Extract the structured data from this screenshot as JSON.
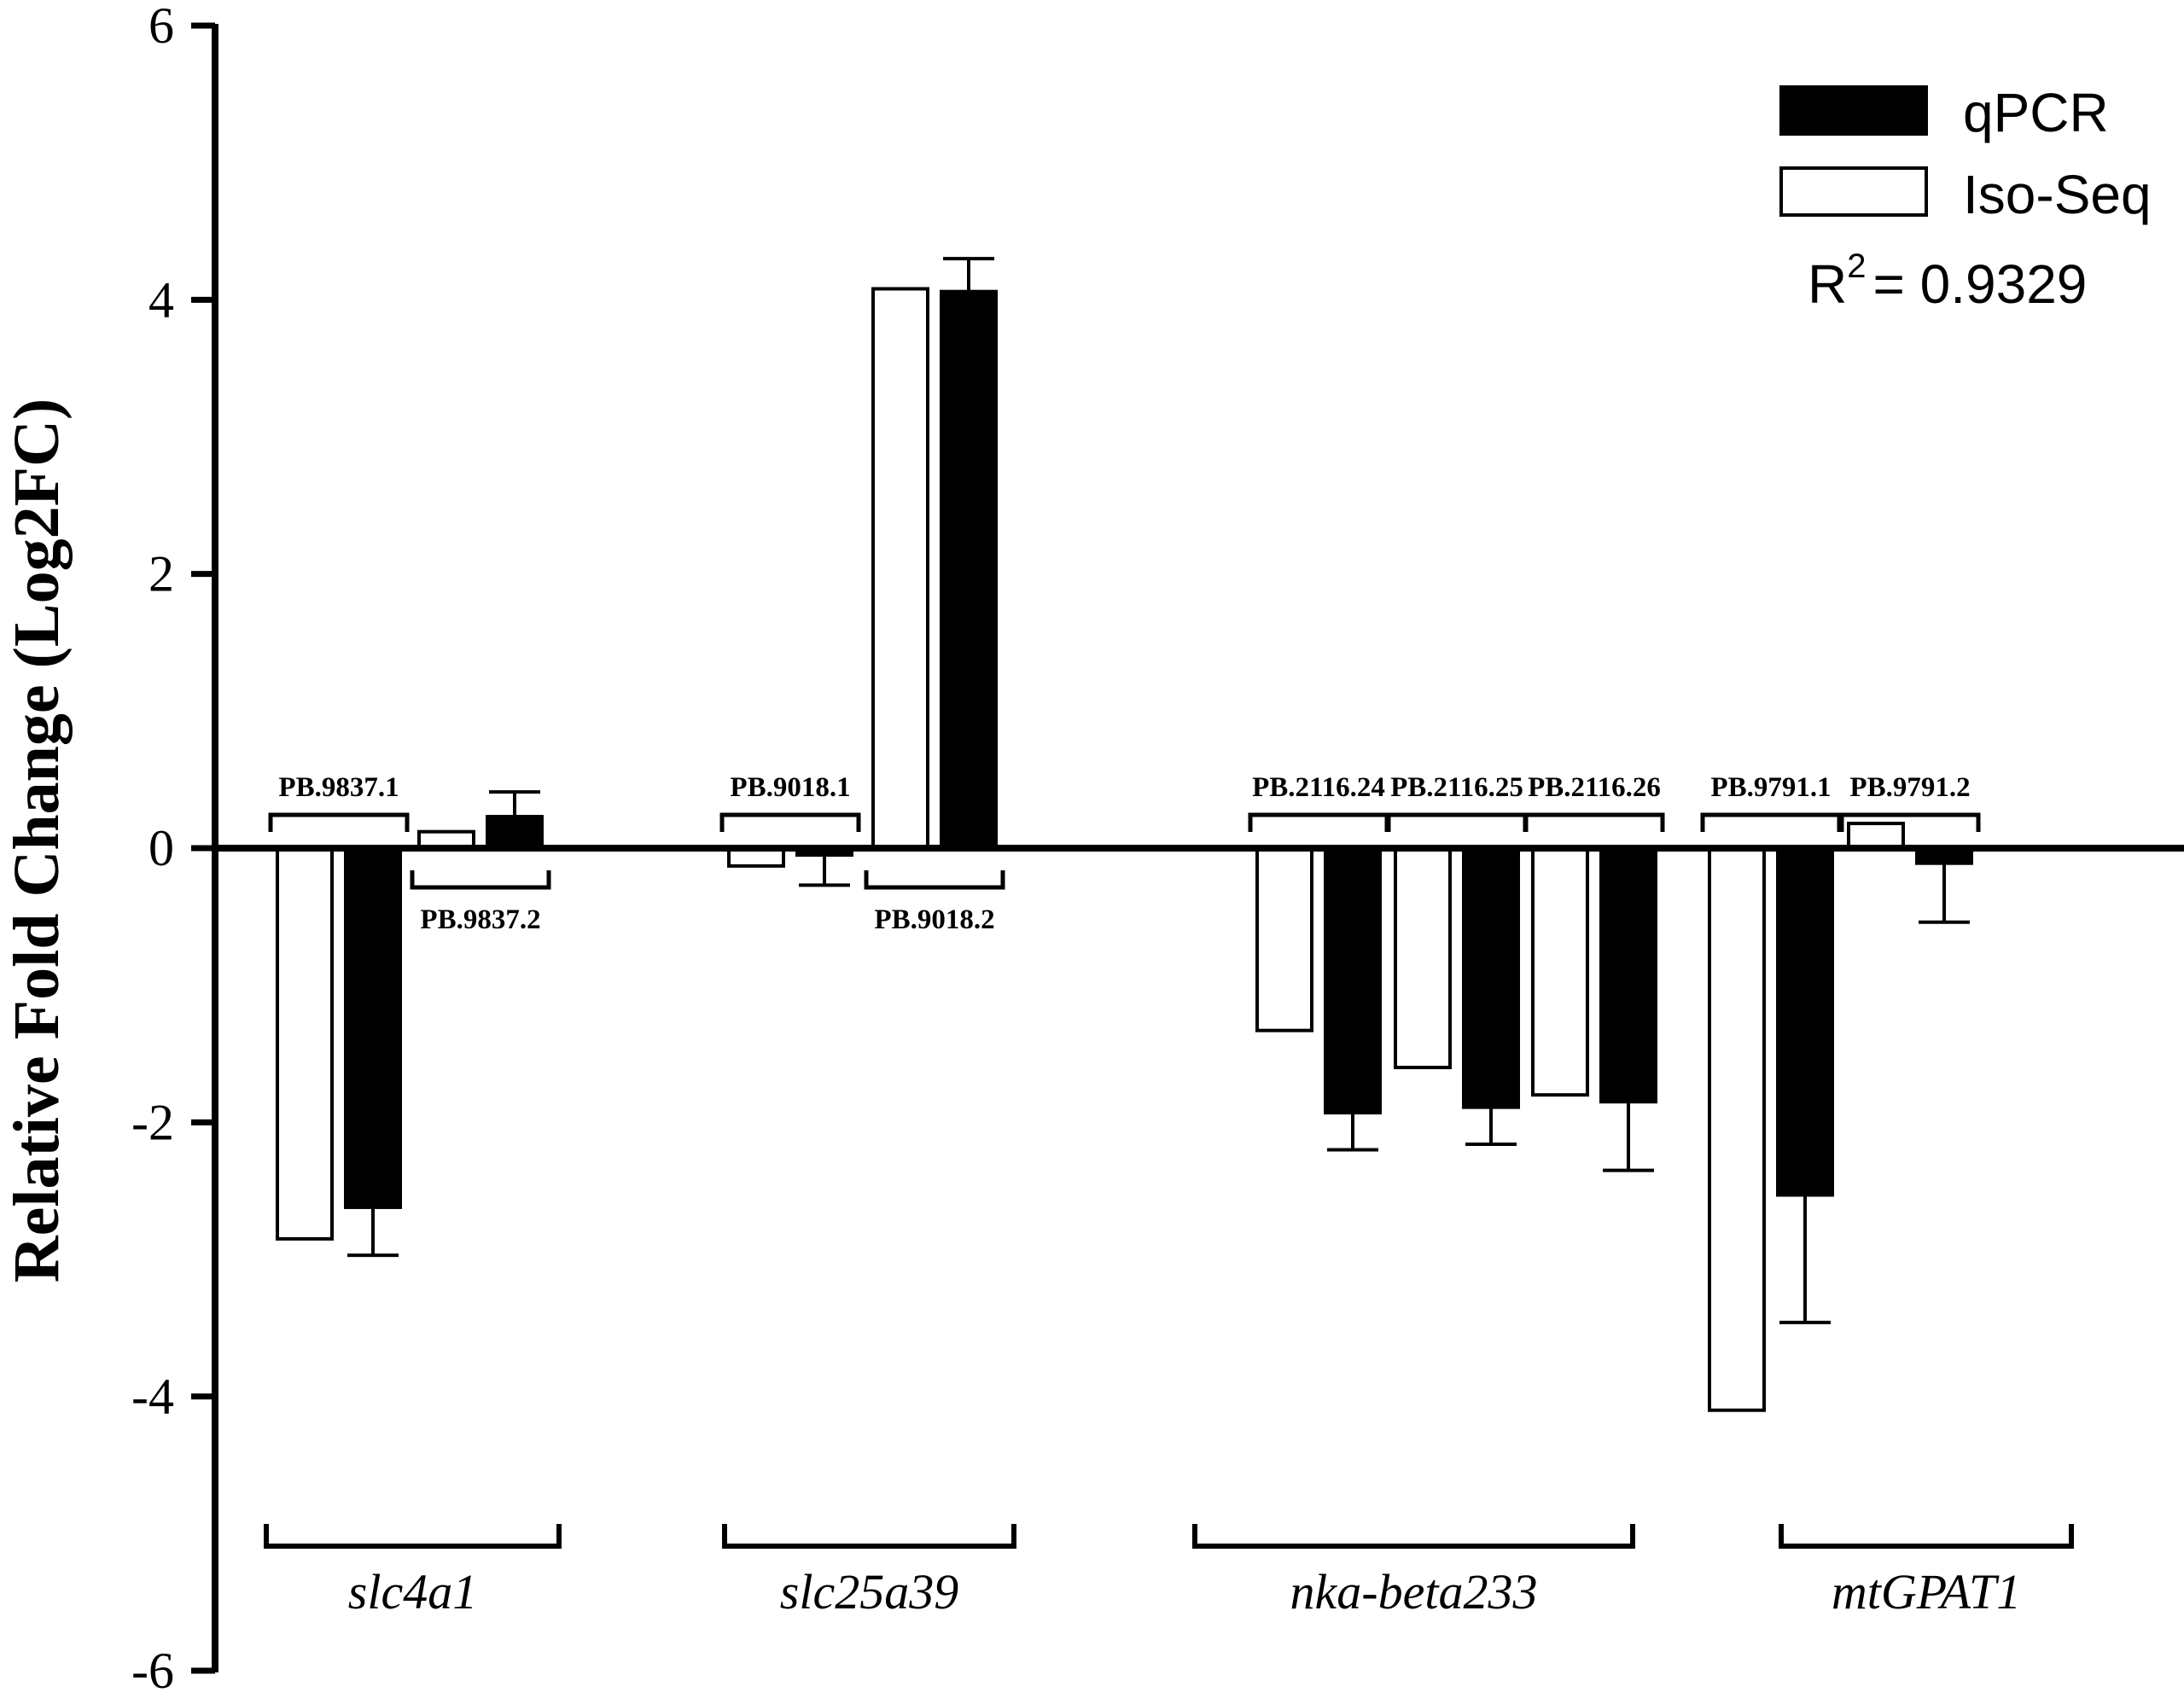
{
  "chart_data": {
    "type": "bar",
    "ylabel": "Relative Fold Change (Log2FC)",
    "ylim": [
      -6,
      6
    ],
    "yticks": [
      "6",
      "4",
      "2",
      "0",
      "-2",
      "-4",
      "-6"
    ],
    "series": [
      {
        "name": "Iso-Seq",
        "color": "#ffffff"
      },
      {
        "name": "qPCR",
        "color": "#000000"
      }
    ],
    "legend": {
      "position": "top-right",
      "order": [
        "qPCR",
        "Iso-Seq"
      ]
    },
    "r2_label": "R",
    "r2_sup": "2",
    "r2_value": "=  0.9329",
    "genes": [
      {
        "name": "slc4a1",
        "isoforms": [
          {
            "label": "PB.9837.1",
            "label_side": "top",
            "iso_seq": -2.85,
            "qpcr": -2.62,
            "qpcr_err": 0.35
          },
          {
            "label": "PB.9837.2",
            "label_side": "bottom",
            "iso_seq": 0.12,
            "qpcr": 0.23,
            "qpcr_err": 0.18
          }
        ]
      },
      {
        "name": "slc25a39",
        "isoforms": [
          {
            "label": "PB.9018.1",
            "label_side": "top",
            "iso_seq": -0.13,
            "qpcr": -0.05,
            "qpcr_err": 0.22
          },
          {
            "label": "PB.9018.2",
            "label_side": "bottom",
            "iso_seq": 4.08,
            "qpcr": 4.06,
            "qpcr_err": 0.24
          }
        ]
      },
      {
        "name": "nka-beta233",
        "isoforms": [
          {
            "label": "PB.2116.24",
            "label_side": "top",
            "iso_seq": -1.33,
            "qpcr": -1.93,
            "qpcr_err": 0.27
          },
          {
            "label": "PB.2116.25",
            "label_side": "top",
            "iso_seq": -1.6,
            "qpcr": -1.89,
            "qpcr_err": 0.27
          },
          {
            "label": "PB.2116.26",
            "label_side": "top",
            "iso_seq": -1.8,
            "qpcr": -1.85,
            "qpcr_err": 0.5
          }
        ]
      },
      {
        "name": "mtGPAT1",
        "isoforms": [
          {
            "label": "PB.9791.1",
            "label_side": "top",
            "iso_seq": -4.1,
            "qpcr": -2.53,
            "qpcr_err": 0.93
          },
          {
            "label": "PB.9791.2",
            "label_side": "top",
            "iso_seq": 0.18,
            "qpcr": -0.11,
            "qpcr_err": 0.43
          }
        ]
      }
    ]
  }
}
